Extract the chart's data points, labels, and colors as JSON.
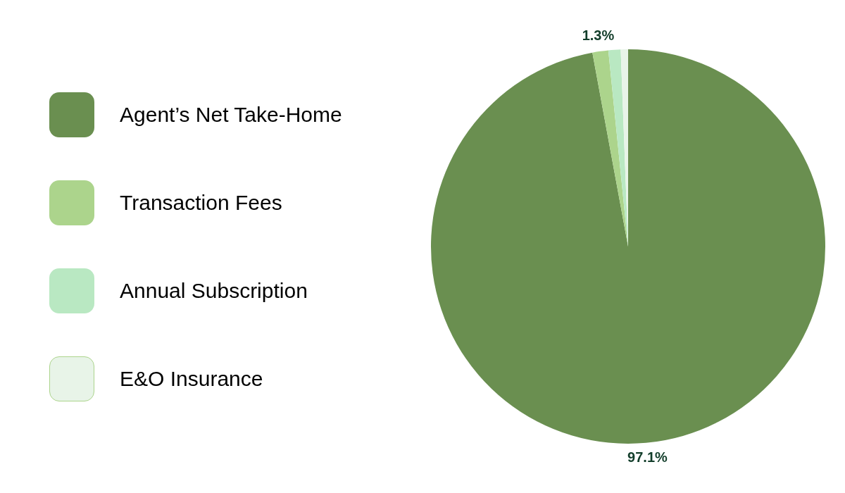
{
  "chart_data": {
    "type": "pie",
    "categories": [
      "Agent’s Net Take-Home",
      "Transaction Fees",
      "Annual Subscription",
      "E&O Insurance"
    ],
    "values": [
      97.1,
      1.3,
      1.0,
      0.6
    ],
    "colors": [
      "#6a8f50",
      "#acd48c",
      "#b9e8c2",
      "#e8f4e8"
    ],
    "value_labels": [
      "97.1%",
      "1.3%",
      null,
      null
    ],
    "legend": "left"
  }
}
